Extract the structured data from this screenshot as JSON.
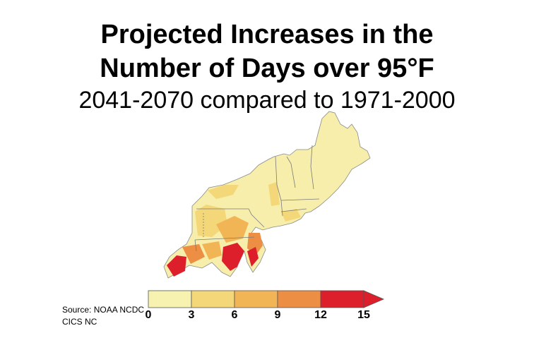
{
  "title": {
    "line1": "Projected Increases in the",
    "line2": "Number of Days over 95°F",
    "subtitle": "2041-2070 compared to 1971-2000"
  },
  "source": {
    "line1": "Source: NOAA NCDC",
    "line2": "CICS NC"
  },
  "legend": {
    "ticks": [
      "0",
      "3",
      "6",
      "9",
      "12",
      "15"
    ],
    "colors": [
      "#f7f2b0",
      "#f4d778",
      "#f2b556",
      "#ec8f45",
      "#dd1f2c"
    ],
    "extends_beyond_max": true
  },
  "map": {
    "region": "Northeast United States",
    "base_color": "#f6eeaa",
    "border_color": "#7a7a7a"
  }
}
